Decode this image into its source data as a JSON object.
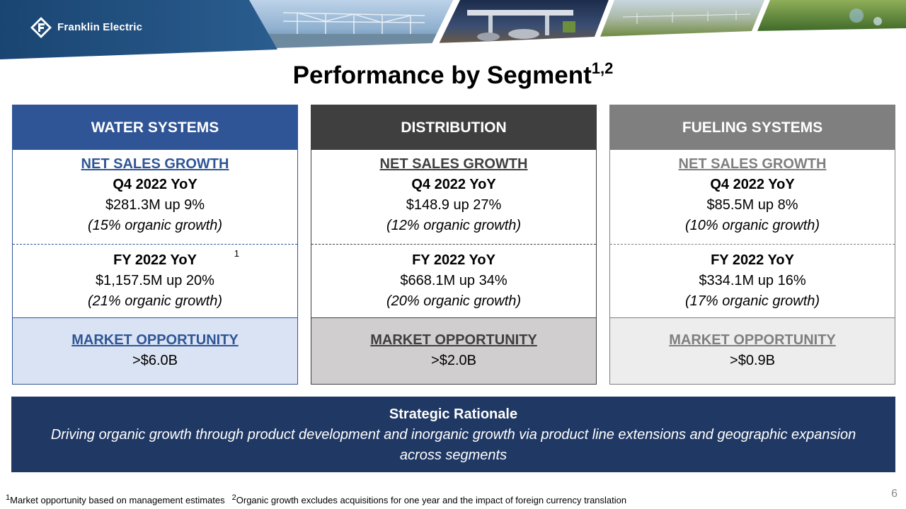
{
  "brand": {
    "name": "Franklin Electric"
  },
  "title": {
    "text": "Performance by Segment",
    "sup": "1,2"
  },
  "segments": [
    {
      "name": "WATER SYSTEMS",
      "growth_label": "NET SALES GROWTH",
      "q4_label": "Q4 2022 YoY",
      "q4_value": "$281.3M up 9%",
      "q4_organic": "(15% organic growth)",
      "fy_label": "FY 2022 YoY",
      "fy_value": "$1,157.5M up 20%",
      "fy_organic": "(21% organic growth)",
      "fy_footnote": "1",
      "market_label": "MARKET OPPORTUNITY",
      "market_value": ">$6.0B"
    },
    {
      "name": "DISTRIBUTION",
      "growth_label": "NET SALES GROWTH",
      "q4_label": "Q4 2022 YoY",
      "q4_value": "$148.9 up 27%",
      "q4_organic": "(12% organic growth)",
      "fy_label": "FY 2022 YoY",
      "fy_value": "$668.1M up 34%",
      "fy_organic": "(20% organic growth)",
      "market_label": "MARKET OPPORTUNITY",
      "market_value": ">$2.0B"
    },
    {
      "name": "FUELING SYSTEMS",
      "growth_label": "NET SALES GROWTH",
      "q4_label": "Q4 2022 YoY",
      "q4_value": "$85.5M up 8%",
      "q4_organic": "(10% organic growth)",
      "fy_label": "FY 2022 YoY",
      "fy_value": "$334.1M up 16%",
      "fy_organic": "(17% organic growth)",
      "market_label": "MARKET OPPORTUNITY",
      "market_value": ">$0.9B"
    }
  ],
  "rationale": {
    "title": "Strategic Rationale",
    "body": "Driving organic growth through product development and inorganic growth via product line extensions and geographic expansion across segments"
  },
  "footnotes": [
    {
      "mark": "1",
      "text": "Market opportunity based on management estimates"
    },
    {
      "mark": "2",
      "text": "Organic growth excludes acquisitions for one year and the impact of foreign currency translation"
    }
  ],
  "page_number": "6",
  "colors": {
    "water": "#2f5597",
    "distribution": "#3f3f3f",
    "fueling": "#7f7f7f",
    "rationale_bg": "#203864",
    "banner_navy": "#1f4e79"
  }
}
